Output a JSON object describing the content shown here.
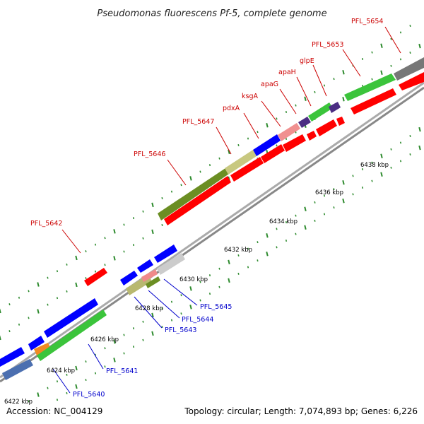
{
  "title": "Pseudomonas fluorescens Pf-5, complete genome",
  "footer": {
    "accession": "Accession: NC_004129",
    "topology": "Topology: circular; Length: 7,074,893 bp; Genes: 6,226"
  },
  "colors": {
    "background": "#ffffff",
    "track_line": "#999999",
    "tick_major": "#2e8b2e",
    "tick_minor": "#2e8b2e",
    "forward_label": "#cc0000",
    "reverse_label": "#0000cc"
  },
  "scale": {
    "unit": "kbp",
    "labels": [
      "6422 kbp",
      "6424 kbp",
      "6426 kbp",
      "6428 kbp",
      "6430 kbp",
      "6432 kbp",
      "6434 kbp",
      "6436 kbp",
      "6438 kbp"
    ]
  },
  "labels": {
    "forward": [
      "PFL_5642",
      "PFL_5646",
      "PFL_5647",
      "pdxA",
      "ksgA",
      "apaG",
      "apaH",
      "glpE",
      "PFL_5653",
      "PFL_5654"
    ],
    "reverse": [
      "PFL_5640",
      "PFL_5641",
      "PFL_5643",
      "PFL_5644",
      "PFL_5645"
    ]
  }
}
